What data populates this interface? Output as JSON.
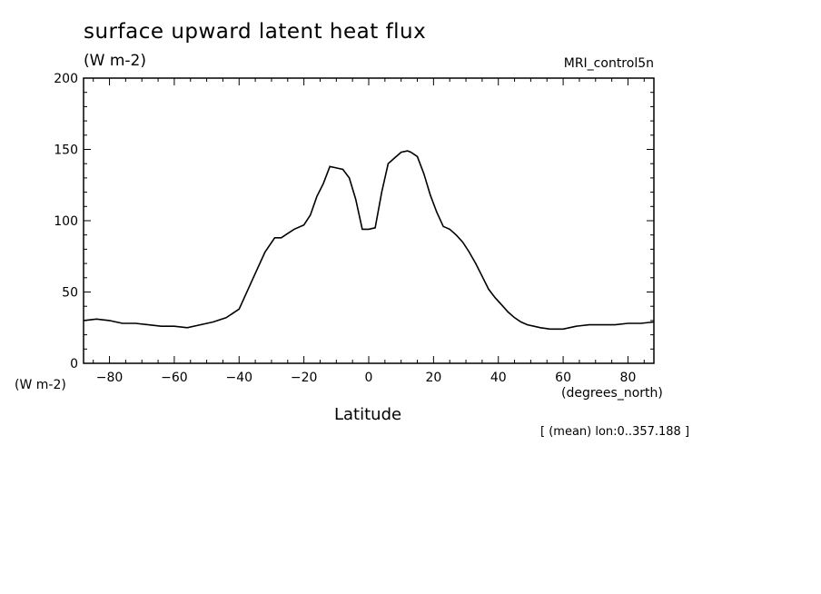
{
  "chart_data": {
    "type": "line",
    "title": "surface upward latent heat flux",
    "units_label": "(W m-2)",
    "model_label": "MRI_control5n",
    "y_unit_label": "(W m-2)",
    "x_unit_label": "(degrees_north)",
    "xlabel": "Latitude",
    "note": "[ (mean) lon:0..357.188 ]",
    "xlim": [
      -88,
      88
    ],
    "ylim": [
      0,
      200
    ],
    "xticks": [
      -80,
      -60,
      -40,
      -20,
      0,
      20,
      40,
      60,
      80
    ],
    "yticks": [
      0,
      50,
      100,
      150,
      200
    ],
    "series": [
      {
        "x": [
          -88,
          -84,
          -80,
          -76,
          -72,
          -68,
          -64,
          -60,
          -56,
          -52,
          -48,
          -44,
          -40,
          -36,
          -32,
          -29,
          -27,
          -25,
          -23,
          -20,
          -18,
          -16,
          -14,
          -12,
          -10,
          -8,
          -6,
          -4,
          -2,
          0,
          2,
          4,
          6,
          8,
          10,
          12,
          13,
          15,
          17,
          19,
          21,
          23,
          25,
          27,
          29,
          31,
          33,
          35,
          37,
          39,
          41,
          43,
          45,
          47,
          49,
          51,
          53,
          56,
          60,
          64,
          68,
          72,
          76,
          80,
          84,
          88
        ],
        "y": [
          30,
          31,
          30,
          28,
          28,
          27,
          26,
          26,
          25,
          27,
          29,
          32,
          38,
          58,
          78,
          88,
          88,
          91,
          94,
          97,
          104,
          117,
          126,
          138,
          137,
          136,
          130,
          115,
          94,
          94,
          95,
          120,
          140,
          144,
          148,
          149,
          148,
          145,
          133,
          118,
          106,
          96,
          94,
          90,
          85,
          78,
          70,
          61,
          52,
          46,
          41,
          36,
          32,
          29,
          27,
          26,
          25,
          24,
          24,
          26,
          27,
          27,
          27,
          28,
          28,
          29
        ]
      }
    ]
  }
}
